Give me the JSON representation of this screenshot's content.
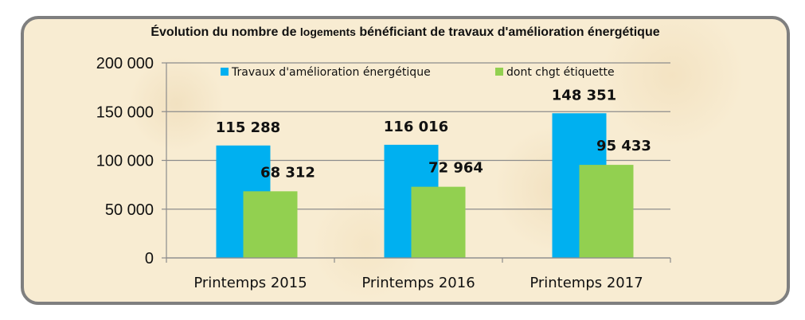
{
  "chart_data": {
    "type": "bar",
    "title_parts": [
      "Évolution du nombre de ",
      "logements",
      " bénéficiant de travaux d'amélioration énergétique"
    ],
    "categories": [
      "Printemps 2015",
      "Printemps 2016",
      "Printemps 2017"
    ],
    "series": [
      {
        "name": "Travaux d'amélioration énergétique",
        "color": "#00b0f0",
        "values": [
          115288,
          116016,
          148351
        ],
        "labels": [
          "115 288",
          "116 016",
          "148 351"
        ]
      },
      {
        "name": "dont chgt étiquette",
        "color": "#92d050",
        "values": [
          68312,
          72964,
          95433
        ],
        "labels": [
          "68 312",
          "72 964",
          "95 433"
        ]
      }
    ],
    "ylim": [
      0,
      200000
    ],
    "yticks": [
      0,
      50000,
      100000,
      150000,
      200000
    ],
    "ytick_labels": [
      "0",
      "50 000",
      "100 000",
      "150 000",
      "200 000"
    ],
    "grid": true,
    "legend_position": "top"
  }
}
